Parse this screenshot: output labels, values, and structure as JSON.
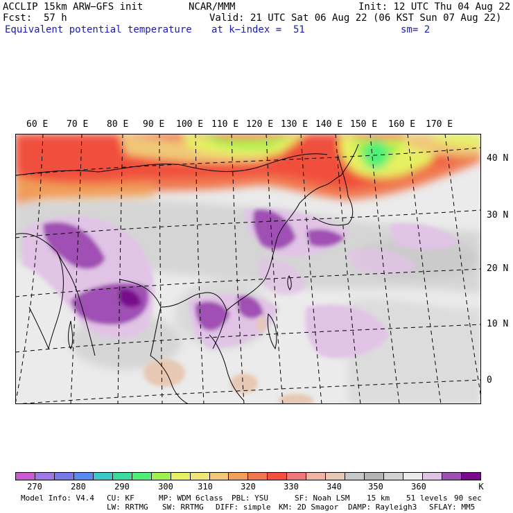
{
  "header": {
    "title": "ACCLIP 15km ARW−GFS init",
    "org": "NCAR/MMM",
    "init": "Init: 12 UTC Thu 04 Aug 22",
    "fcst_label": "Fcst:",
    "fcst_value": "57 h",
    "valid": "Valid: 21 UTC Sat 06 Aug 22 (06 KST Sun 07 Aug 22)",
    "field": "Equivalent potential temperature",
    "level": "at k−index =  51",
    "smooth": "sm= 2"
  },
  "map": {
    "lon_labels": [
      "60 E",
      "70 E",
      "80 E",
      "90 E",
      "100 E",
      "110 E",
      "120 E",
      "130 E",
      "140 E",
      "150 E",
      "160 E",
      "170 E"
    ],
    "lat_labels": [
      "40 N",
      "30 N",
      "20 N",
      "10 N",
      "0"
    ]
  },
  "colorbar": {
    "colors": [
      "#c85ad2",
      "#a078e6",
      "#7878e6",
      "#5a8cf0",
      "#3cc8c8",
      "#3cdca0",
      "#50f078",
      "#a0f050",
      "#e6f064",
      "#f0e678",
      "#f0c878",
      "#f0a05a",
      "#f07850",
      "#f0503c",
      "#f07878",
      "#f0b4a0",
      "#e6c8b4",
      "#c8c8c8",
      "#b4b4b4",
      "#d2d2d2",
      "#ebebeb",
      "#e1c3e6",
      "#a050b4",
      "#780a8c"
    ],
    "ticks": [
      "270",
      "280",
      "290",
      "300",
      "310",
      "320",
      "330",
      "340",
      "350",
      "360"
    ],
    "unit": "K"
  },
  "footer": {
    "line1": [
      "Model Info: V4.4",
      "CU: KF",
      "MP: WDM 6class",
      "PBL: YSU",
      "SF: Noah LSM",
      "15 km",
      "51 levels",
      "90 sec"
    ],
    "line2": [
      "LW: RRTMG",
      "SW: RRTMG",
      "DIFF: simple",
      "KM: 2D Smagor",
      "DAMP: Rayleigh3",
      "SFLAY: MM5"
    ]
  }
}
